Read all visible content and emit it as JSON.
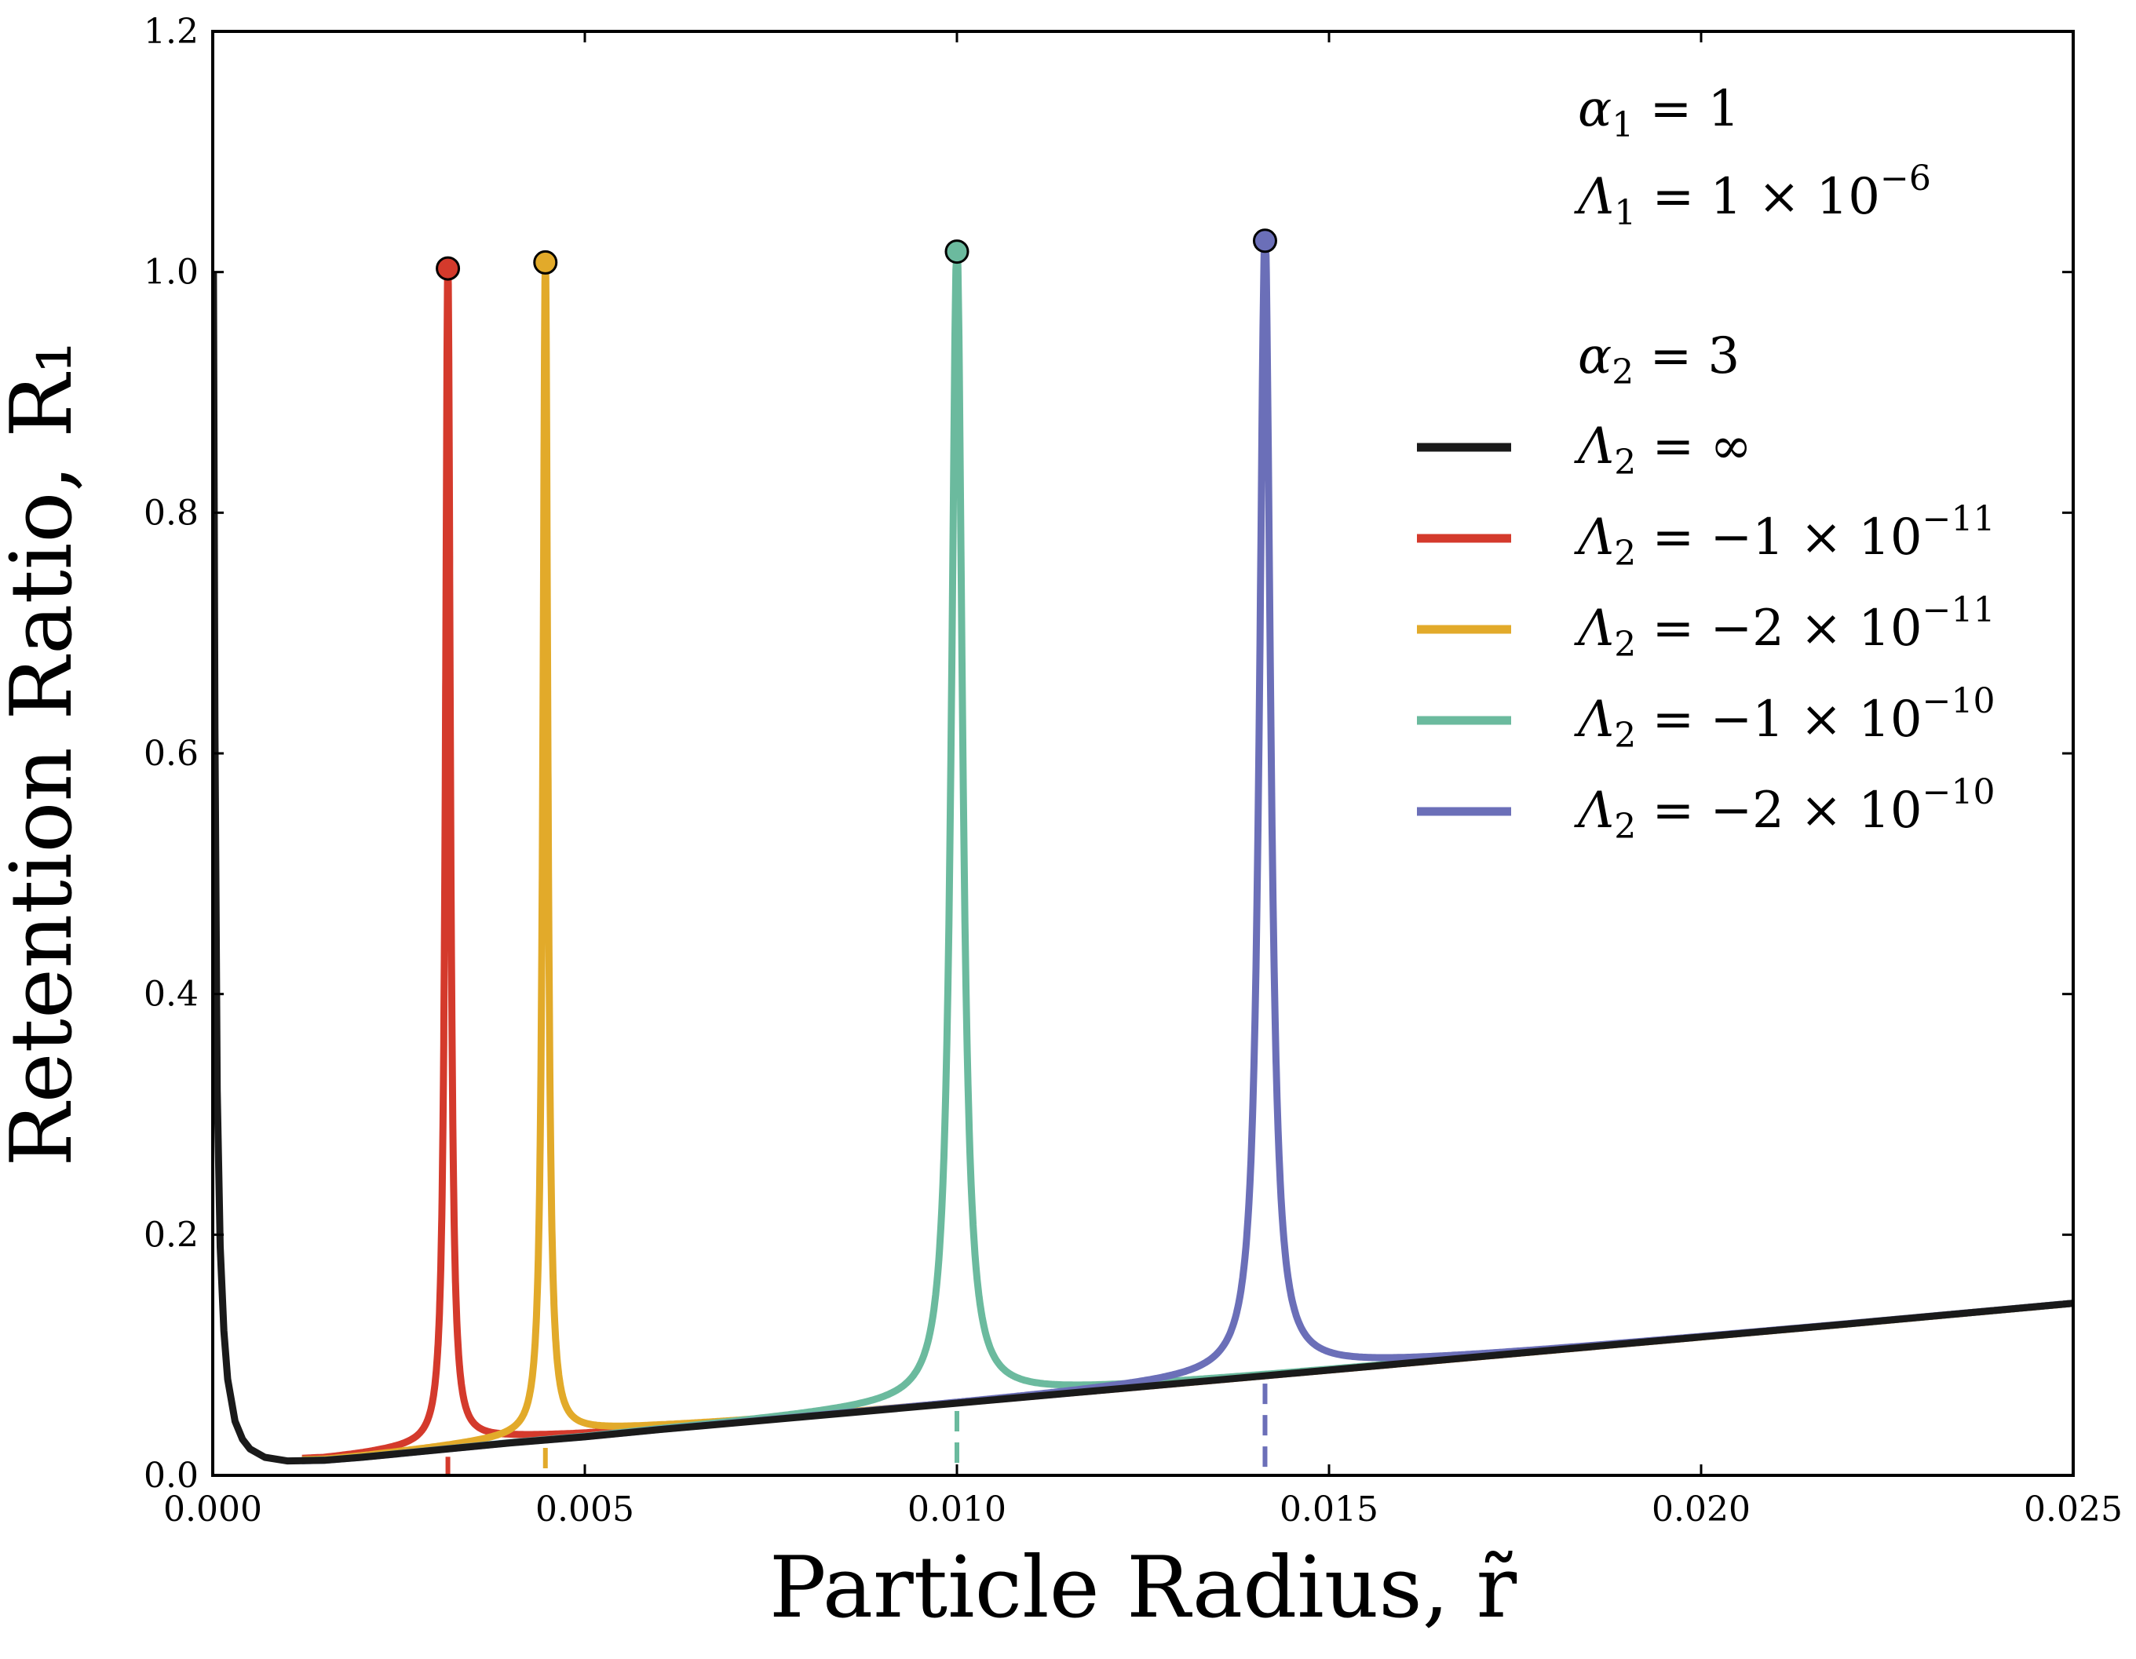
{
  "chart_data": {
    "type": "line",
    "xlabel": "Particle Radius, r̃",
    "ylabel": "Retention Ratio, R₁",
    "xlim": [
      0.0,
      0.025
    ],
    "ylim": [
      0.0,
      1.2
    ],
    "xticks": [
      "0.000",
      "0.005",
      "0.010",
      "0.015",
      "0.020",
      "0.025"
    ],
    "yticks": [
      "0.0",
      "0.2",
      "0.4",
      "0.6",
      "0.8",
      "1.0",
      "1.2"
    ],
    "grid": false,
    "legend_position": "top-right",
    "annotations": {
      "alpha1": {
        "symbol": "α",
        "sub": "1",
        "rest": " = 1"
      },
      "lambda1": {
        "symbol": "Λ",
        "sub": "1",
        "rest": " = 1 × 10",
        "sup": "−6"
      },
      "alpha2": {
        "symbol": "α",
        "sub": "2",
        "rest": " = 3"
      }
    },
    "series": [
      {
        "name": "Λ2 = ∞",
        "symbol": "Λ",
        "sub": "2",
        "rest": " = ∞",
        "sup": "",
        "color": "#1a1a1a",
        "singularity": null,
        "peak": null
      },
      {
        "name": "Λ2 = −1 × 10^−11",
        "symbol": "Λ",
        "sub": "2",
        "rest": " = −1 × 10",
        "sup": "−11",
        "color": "#d43a2c",
        "singularity": 0.00316,
        "peak": 1.003
      },
      {
        "name": "Λ2 = −2 × 10^−11",
        "symbol": "Λ",
        "sub": "2",
        "rest": " = −2 × 10",
        "sup": "−11",
        "color": "#e2aa2a",
        "singularity": 0.00447,
        "peak": 1.008
      },
      {
        "name": "Λ2 = −1 × 10^−10",
        "symbol": "Λ",
        "sub": "2",
        "rest": " = −1 × 10",
        "sup": "−10",
        "color": "#6bba9e",
        "singularity": 0.01,
        "peak": 1.017
      },
      {
        "name": "Λ2 = −2 × 10^−10",
        "symbol": "Λ",
        "sub": "2",
        "rest": " = −2 × 10",
        "sup": "−10",
        "color": "#6b6fb8",
        "singularity": 0.01414,
        "peak": 1.026
      }
    ],
    "base_curve_points": [
      [
        1e-05,
        1.0
      ],
      [
        3e-05,
        0.62
      ],
      [
        6e-05,
        0.32
      ],
      [
        0.0001,
        0.19
      ],
      [
        0.00015,
        0.12
      ],
      [
        0.0002,
        0.08
      ],
      [
        0.0003,
        0.045
      ],
      [
        0.0004,
        0.03
      ],
      [
        0.0005,
        0.022
      ],
      [
        0.0007,
        0.015
      ],
      [
        0.001,
        0.012
      ],
      [
        0.0015,
        0.0125
      ],
      [
        0.002,
        0.015
      ],
      [
        0.003,
        0.021
      ],
      [
        0.004,
        0.027
      ],
      [
        0.005,
        0.032
      ],
      [
        0.006,
        0.038
      ],
      [
        0.008,
        0.049
      ],
      [
        0.01,
        0.06
      ],
      [
        0.012,
        0.071
      ],
      [
        0.014,
        0.082
      ],
      [
        0.016,
        0.093
      ],
      [
        0.018,
        0.104
      ],
      [
        0.02,
        0.115
      ],
      [
        0.022,
        0.126
      ],
      [
        0.025,
        0.143
      ]
    ]
  }
}
